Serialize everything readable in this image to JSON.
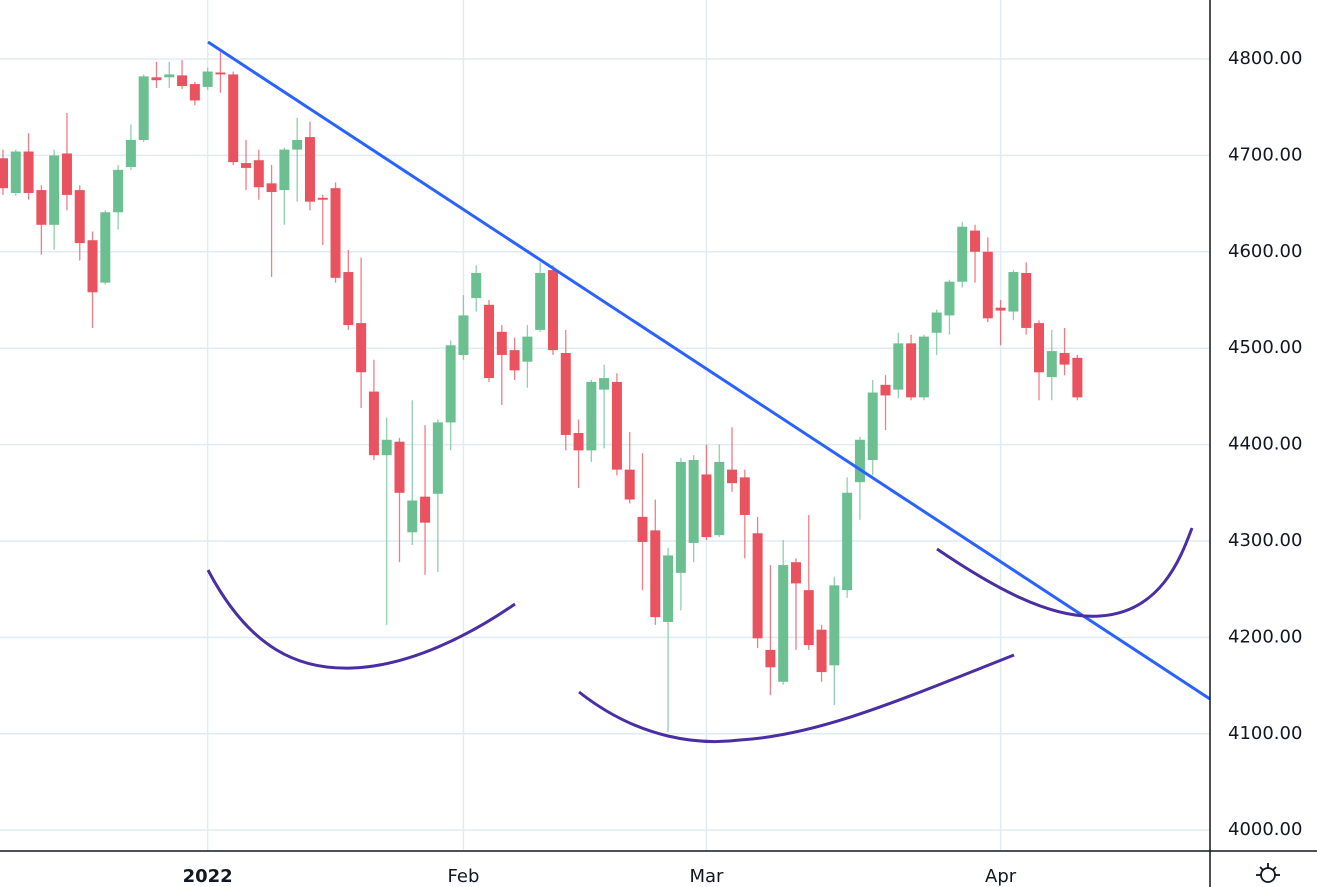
{
  "chart_data": {
    "type": "candlestick",
    "categories": [
      null,
      null,
      null,
      null,
      null,
      null,
      null,
      null,
      null,
      null,
      null,
      null,
      null,
      null,
      null,
      null,
      null,
      null,
      null,
      null,
      null,
      null,
      null,
      null,
      null,
      null,
      null,
      null,
      null,
      null,
      null,
      null,
      null,
      null,
      null,
      null,
      null,
      null,
      null,
      null,
      null,
      null,
      null,
      null,
      null,
      null,
      null,
      null,
      null,
      null,
      null,
      null,
      null,
      null,
      null,
      null,
      null,
      null,
      null,
      null,
      null,
      null,
      null,
      null,
      null,
      null,
      null,
      null,
      null,
      null,
      null,
      null,
      null,
      null,
      null,
      null,
      null,
      null,
      null,
      null,
      null,
      null,
      null,
      null,
      null
    ],
    "open": [
      4697,
      4661,
      4704,
      4664,
      4628,
      4702,
      4664,
      4612,
      4568,
      4641,
      4688,
      4716,
      4781,
      4781,
      4783,
      4774,
      4771,
      4786,
      4784,
      4692,
      4695,
      4671,
      4664,
      4706,
      4719,
      4656,
      4666,
      4579,
      4526,
      4455,
      4389,
      4403,
      4309,
      4346,
      4349,
      4423,
      4493,
      4552,
      4545,
      4517,
      4498,
      4486,
      4519,
      4581,
      4495,
      4412,
      4394,
      4457,
      4465,
      4374,
      4325,
      4311,
      4216,
      4267,
      4298,
      4369,
      4306,
      4374,
      4366,
      4308,
      4187,
      4154,
      4278,
      4249,
      4208,
      4171,
      4249,
      4361,
      4384,
      4462,
      4457,
      4505,
      4449,
      4516,
      4534,
      4569,
      4622,
      4600,
      4542,
      4538,
      4578,
      4526,
      4470,
      4495,
      4490
    ],
    "high": [
      4706,
      4706,
      4723,
      4669,
      4706,
      4744,
      4669,
      4621,
      4643,
      4690,
      4732,
      4784,
      4797,
      4797,
      4799,
      4776,
      4791,
      4807,
      4787,
      4716,
      4706,
      4690,
      4708,
      4739,
      4735,
      4659,
      4672,
      4602,
      4594,
      4488,
      4428,
      4407,
      4446,
      4420,
      4426,
      4508,
      4555,
      4586,
      4550,
      4524,
      4511,
      4524,
      4589,
      4586,
      4519,
      4426,
      4467,
      4483,
      4474,
      4413,
      4391,
      4343,
      4293,
      4386,
      4389,
      4400,
      4400,
      4418,
      4374,
      4325,
      4275,
      4301,
      4282,
      4327,
      4213,
      4263,
      4366,
      4408,
      4467,
      4472,
      4516,
      4514,
      4514,
      4540,
      4571,
      4631,
      4628,
      4615,
      4550,
      4581,
      4589,
      4529,
      4519,
      4521,
      4493
    ],
    "low": [
      4659,
      4658,
      4654,
      4597,
      4602,
      4643,
      4591,
      4521,
      4566,
      4623,
      4685,
      4714,
      4770,
      4770,
      4769,
      4752,
      4768,
      4765,
      4690,
      4664,
      4654,
      4574,
      4628,
      4652,
      4643,
      4607,
      4568,
      4519,
      4438,
      4384,
      4213,
      4278,
      4296,
      4265,
      4268,
      4394,
      4488,
      4538,
      4465,
      4441,
      4467,
      4459,
      4517,
      4493,
      4394,
      4355,
      4382,
      4396,
      4368,
      4339,
      4249,
      4213,
      4102,
      4228,
      4278,
      4301,
      4304,
      4351,
      4282,
      4189,
      4140,
      4151,
      4187,
      4187,
      4154,
      4130,
      4241,
      4322,
      4368,
      4415,
      4448,
      4446,
      4446,
      4493,
      4514,
      4563,
      4568,
      4527,
      4503,
      4529,
      4514,
      4446,
      4446,
      4472,
      4446
    ],
    "close": [
      4666,
      4704,
      4661,
      4628,
      4700,
      4659,
      4609,
      4558,
      4641,
      4685,
      4716,
      4782,
      4778,
      4784,
      4772,
      4757,
      4787,
      4784,
      4693,
      4687,
      4667,
      4662,
      4706,
      4716,
      4652,
      4654,
      4573,
      4524,
      4475,
      4389,
      4405,
      4350,
      4342,
      4319,
      4423,
      4503,
      4534,
      4578,
      4469,
      4493,
      4477,
      4512,
      4578,
      4498,
      4410,
      4394,
      4465,
      4469,
      4374,
      4343,
      4299,
      4221,
      4285,
      4382,
      4384,
      4304,
      4382,
      4360,
      4327,
      4199,
      4169,
      4275,
      4256,
      4192,
      4164,
      4254,
      4350,
      4405,
      4454,
      4451,
      4505,
      4449,
      4512,
      4537,
      4569,
      4626,
      4600,
      4531,
      4539,
      4579,
      4521,
      4475,
      4497,
      4483,
      4449
    ],
    "up_color": "#6bbf91",
    "down_color": "#e9535f",
    "ylim": [
      3978.4,
      4861.2
    ],
    "yticks": [
      {
        "value": 4000,
        "label": "4000.00"
      },
      {
        "value": 4100,
        "label": "4100.00"
      },
      {
        "value": 4200,
        "label": "4200.00"
      },
      {
        "value": 4300,
        "label": "4300.00"
      },
      {
        "value": 4400,
        "label": "4400.00"
      },
      {
        "value": 4500,
        "label": "4500.00"
      },
      {
        "value": 4600,
        "label": "4600.00"
      },
      {
        "value": 4700,
        "label": "4700.00"
      },
      {
        "value": 4800,
        "label": "4800.00"
      }
    ],
    "xticks": [
      {
        "value": 16,
        "label": "2022"
      },
      {
        "value": 36,
        "label": "Feb"
      },
      {
        "value": 55,
        "label": "Mar"
      },
      {
        "value": 78,
        "label": "Apr"
      }
    ],
    "grid": true
  }
}
